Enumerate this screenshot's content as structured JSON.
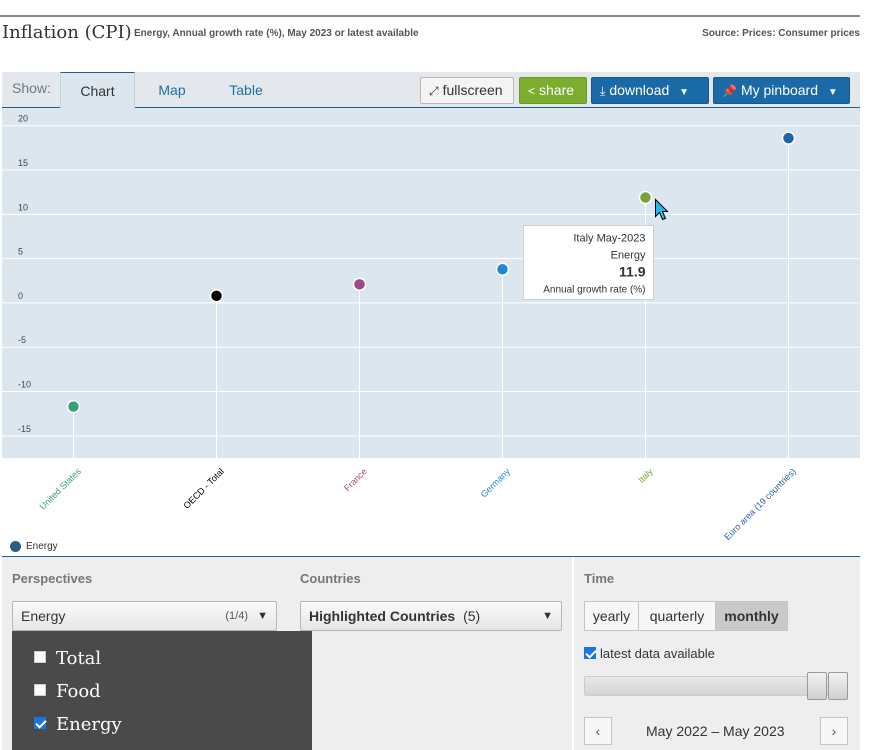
{
  "header": {
    "title": "Inflation (CPI)",
    "subtitle": "Energy, Annual growth rate (%), May 2023 or latest available",
    "source": "Source: Prices: Consumer prices"
  },
  "toolbar": {
    "show_label": "Show:",
    "tabs": [
      {
        "label": "Chart",
        "active": true
      },
      {
        "label": "Map",
        "active": false
      },
      {
        "label": "Table",
        "active": false
      }
    ],
    "fullscreen_label": "fullscreen",
    "share_label": "share",
    "download_label": "download",
    "pinboard_label": "My pinboard",
    "icons": {
      "fullscreen": "expand-icon",
      "share": "share-icon",
      "download": "download-icon",
      "pinboard": "pin-icon"
    }
  },
  "chart_data": {
    "type": "scatter",
    "categories": [
      "United States",
      "OECD - Total",
      "France",
      "Germany",
      "Italy",
      "Euro area (19 countries)"
    ],
    "category_colors": [
      "#38a077",
      "#000000",
      "#a04586",
      "#2188d8",
      "#7aa23a",
      "#1f64a8"
    ],
    "series": [
      {
        "name": "Energy",
        "values": [
          -11.7,
          0.8,
          2.1,
          3.8,
          11.9,
          18.6
        ]
      }
    ],
    "ylim": [
      -17.5,
      22
    ],
    "yticks": [
      20,
      15,
      10,
      5,
      0,
      -5,
      -10,
      -15
    ],
    "ytick_labels": [
      "20",
      "15",
      "10",
      "5",
      "0",
      "-5",
      "-10",
      "-15"
    ],
    "grid": true,
    "legend": "bottom-left",
    "tooltip": {
      "category": "Italy",
      "line1": "Italy May-2023",
      "line2": "Energy",
      "value": "11.9",
      "line4": "Annual growth rate (%)"
    }
  },
  "legend": {
    "label": "Energy",
    "color": "#2a5d80"
  },
  "copyright": "©",
  "controls": {
    "perspectives": {
      "title": "Perspectives",
      "selected": "Energy",
      "count": "(1/4)",
      "options": [
        {
          "label": "Total",
          "checked": false
        },
        {
          "label": "Food",
          "checked": false
        },
        {
          "label": "Energy",
          "checked": true
        }
      ]
    },
    "countries": {
      "title": "Countries",
      "selected": "Highlighted Countries",
      "count": "(5)"
    },
    "time": {
      "title": "Time",
      "frequencies": [
        {
          "label": "yearly",
          "active": false
        },
        {
          "label": "quarterly",
          "active": false
        },
        {
          "label": "monthly",
          "active": true
        }
      ],
      "latest_label": "latest data available",
      "latest_checked": true,
      "period": "May 2022 – May 2023",
      "prev": "‹",
      "next": "›"
    }
  }
}
